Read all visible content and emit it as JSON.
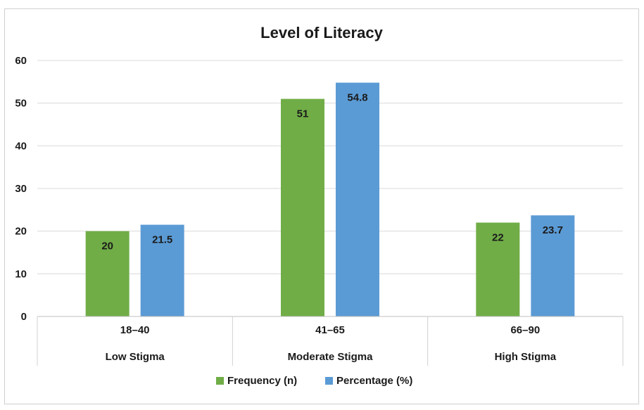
{
  "chart_data": {
    "type": "bar",
    "title": "Level of Literacy",
    "categories": [
      "18–40",
      "41–65",
      "66–90"
    ],
    "category_groups": [
      "Low Stigma",
      "Moderate Stigma",
      "High Stigma"
    ],
    "series": [
      {
        "name": "Frequency (n)",
        "values": [
          20,
          51,
          22
        ],
        "color": "#70ad47"
      },
      {
        "name": "Percentage (%)",
        "values": [
          21.5,
          54.8,
          23.7
        ],
        "color": "#5b9bd5"
      }
    ],
    "y_ticks": [
      0,
      10,
      20,
      30,
      40,
      50,
      60
    ],
    "ylim": [
      0,
      60
    ],
    "grid": true,
    "legend_position": "bottom"
  }
}
